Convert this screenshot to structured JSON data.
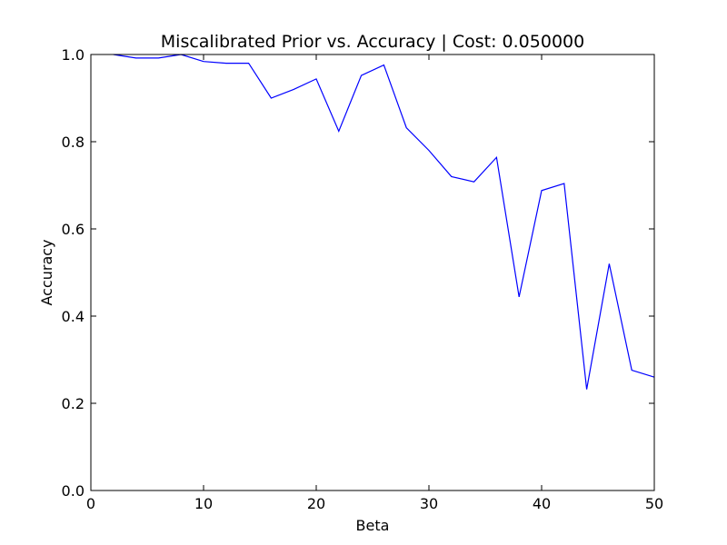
{
  "chart_data": {
    "type": "line",
    "title": "Miscalibrated Prior vs. Accuracy | Cost: 0.050000",
    "xlabel": "Beta",
    "ylabel": "Accuracy",
    "xlim": [
      0,
      50
    ],
    "ylim": [
      0.0,
      1.0
    ],
    "grid": false,
    "xticks": [
      0,
      10,
      20,
      30,
      40,
      50
    ],
    "xtick_labels": [
      "0",
      "10",
      "20",
      "30",
      "40",
      "50"
    ],
    "yticks": [
      0.0,
      0.2,
      0.4,
      0.6,
      0.8,
      1.0
    ],
    "ytick_labels": [
      "0.0",
      "0.2",
      "0.4",
      "0.6",
      "0.8",
      "1.0"
    ],
    "series": [
      {
        "color": "#0000ff",
        "x": [
          2,
          4,
          6,
          8,
          10,
          12,
          14,
          16,
          18,
          20,
          22,
          24,
          26,
          28,
          30,
          32,
          34,
          36,
          38,
          40,
          42,
          44,
          46,
          48,
          50
        ],
        "y": [
          1.0,
          0.992,
          0.992,
          1.0,
          0.984,
          0.98,
          0.98,
          0.9,
          0.92,
          0.944,
          0.824,
          0.952,
          0.976,
          0.832,
          0.78,
          0.72,
          0.708,
          0.764,
          0.444,
          0.688,
          0.704,
          0.232,
          0.52,
          0.276,
          0.26
        ]
      }
    ]
  }
}
